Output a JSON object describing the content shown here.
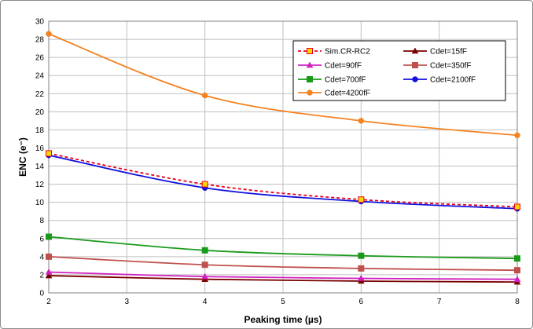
{
  "chart_data": {
    "type": "line",
    "title": "",
    "xlabel": "Peaking time (µs)",
    "ylabel": "ENC (e⁻)",
    "xlim": [
      2,
      8
    ],
    "ylim": [
      0,
      30
    ],
    "x_ticks": [
      2,
      3,
      4,
      5,
      6,
      7,
      8
    ],
    "y_ticks": [
      0,
      2,
      4,
      6,
      8,
      10,
      12,
      14,
      16,
      18,
      20,
      22,
      24,
      26,
      28,
      30
    ],
    "grid": true,
    "legend_position": "top-right",
    "x": [
      2,
      4,
      6,
      8
    ],
    "series": [
      {
        "name": "Sim.CR-RC2",
        "values": [
          15.4,
          12.0,
          10.3,
          9.5
        ],
        "color": "#e8001c",
        "marker": "square",
        "marker_fill": "#ffd700",
        "dashed": true
      },
      {
        "name": "Cdet=15fF",
        "values": [
          1.9,
          1.5,
          1.3,
          1.2
        ],
        "color": "#7a0000",
        "marker": "triangle"
      },
      {
        "name": "Cdet=90fF",
        "values": [
          2.3,
          1.8,
          1.6,
          1.5
        ],
        "color": "#d020c0",
        "marker": "triangle"
      },
      {
        "name": "Cdet=350fF",
        "values": [
          4.0,
          3.1,
          2.7,
          2.5
        ],
        "color": "#c0504d",
        "marker": "square"
      },
      {
        "name": "Cdet=700fF",
        "values": [
          6.2,
          4.7,
          4.1,
          3.8
        ],
        "color": "#1a9a1a",
        "marker": "square"
      },
      {
        "name": "Cdet=2100fF",
        "values": [
          15.2,
          11.6,
          10.1,
          9.3
        ],
        "color": "#1010e0",
        "marker": "circle"
      },
      {
        "name": "Cdet=4200fF",
        "values": [
          28.6,
          21.8,
          19.0,
          17.4
        ],
        "color": "#f58220",
        "marker": "circle"
      }
    ]
  }
}
